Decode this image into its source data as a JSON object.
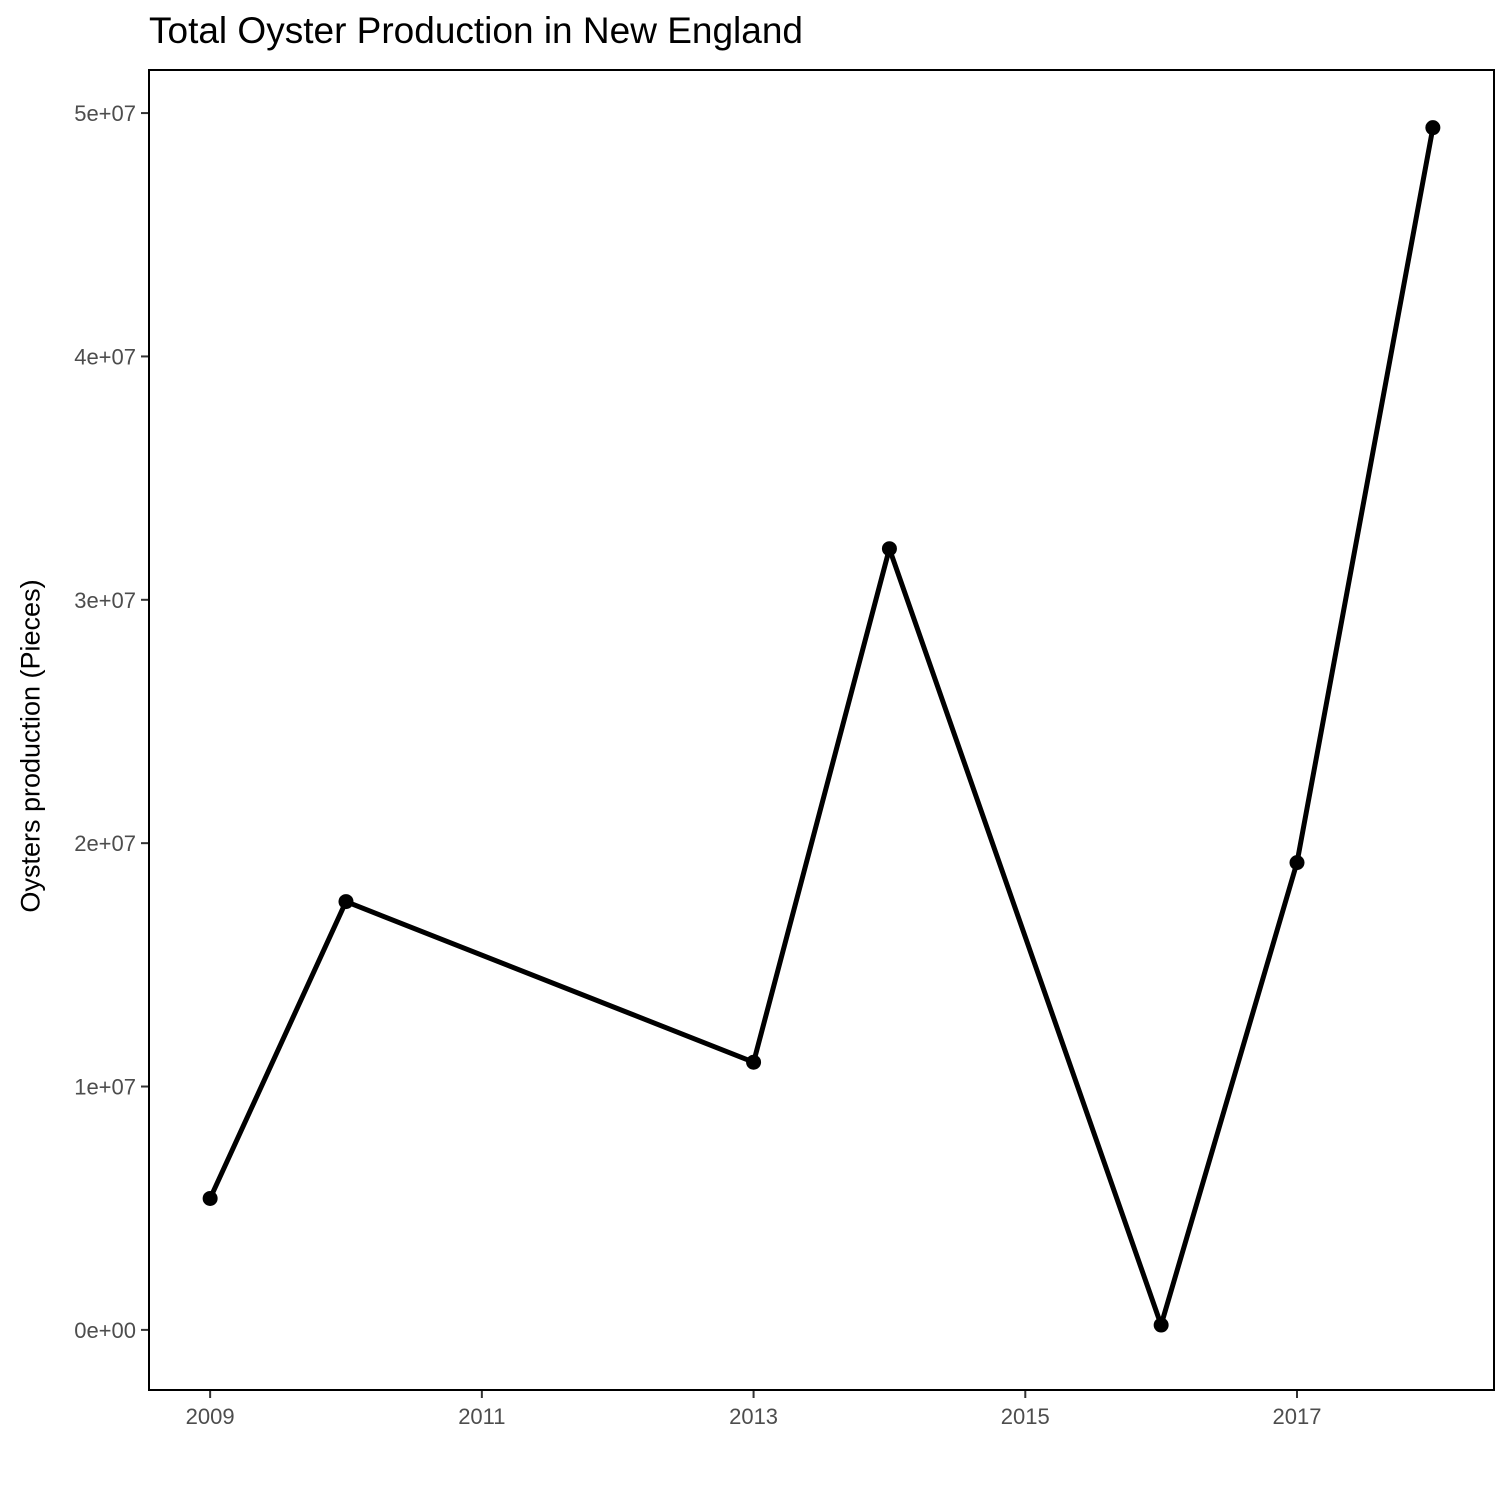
{
  "chart_data": {
    "type": "line",
    "title": "Total Oyster Production in New England",
    "xlabel": "",
    "ylabel": "Oysters production (Pieces)",
    "x": [
      2009,
      2010,
      2013,
      2014,
      2016,
      2017,
      2018
    ],
    "series": [
      {
        "values": [
          5400000,
          17600000,
          11000000,
          32100000,
          200000,
          19200000,
          49400000
        ]
      }
    ],
    "x_ticks": [
      2009,
      2011,
      2013,
      2015,
      2017
    ],
    "x_tick_labels": [
      "2009",
      "2011",
      "2013",
      "2015",
      "2017"
    ],
    "y_ticks": [
      0,
      10000000,
      20000000,
      30000000,
      40000000,
      50000000
    ],
    "y_tick_labels": [
      "0e+00",
      "1e+07",
      "2e+07",
      "3e+07",
      "4e+07",
      "5e+07"
    ],
    "xlim": [
      2008.55,
      2018.45
    ],
    "ylim": [
      -2470000,
      51770000
    ],
    "grid": false,
    "legend": "none",
    "colors": {
      "line": "#000000",
      "points": "#000000",
      "axis_text": "#4d4d4d",
      "panel_border": "#000000"
    }
  }
}
